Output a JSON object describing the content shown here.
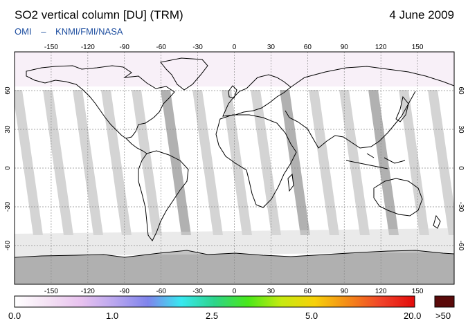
{
  "header": {
    "title": "SO2 vertical column [DU] (TRM)",
    "date": "4 June 2009",
    "instrument": "OMI",
    "dash": "–",
    "institutes": "KNMI/FMI/NASA"
  },
  "map": {
    "lon_ticks": [
      "-150",
      "-120",
      "-90",
      "-60",
      "-30",
      "0",
      "30",
      "60",
      "90",
      "120",
      "150"
    ],
    "lat_ticks": [
      "60",
      "30",
      "0",
      "-30",
      "-60"
    ],
    "lon_range": [
      -180,
      180
    ],
    "lat_range": [
      -90,
      90
    ],
    "grid": true
  },
  "colorbar": {
    "labels": [
      "0.0",
      "1.0",
      "2.5",
      "5.0",
      "20.0"
    ],
    "overflow_label": ">50",
    "colors": [
      "#ffffff",
      "#f4e2f4",
      "#e8c2ef",
      "#b9a6ef",
      "#7f84ec",
      "#38e8f0",
      "#2ed48a",
      "#49e81a",
      "#c6ea10",
      "#f7d10a",
      "#f48a18",
      "#f1432a",
      "#e20b0b"
    ],
    "overflow_color": "#5a0a0a"
  }
}
